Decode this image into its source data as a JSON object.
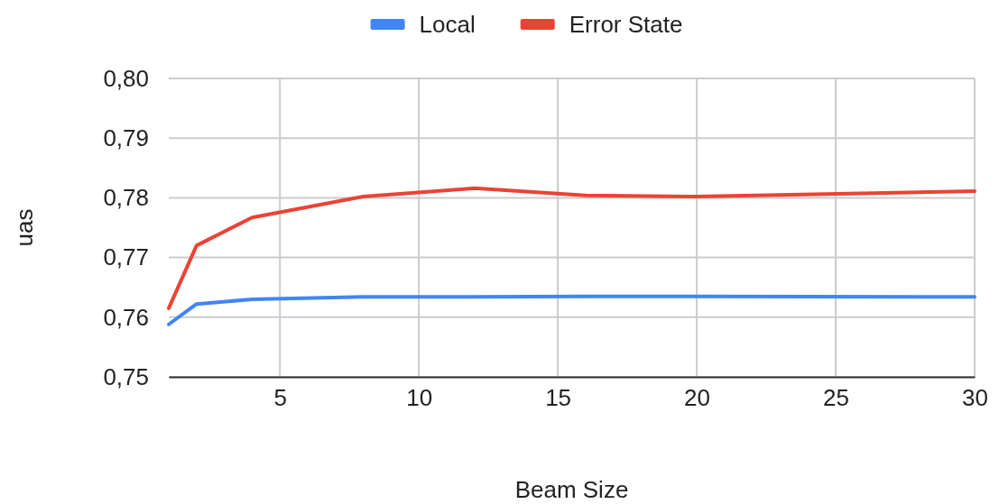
{
  "chart_data": {
    "type": "line",
    "xlabel": "Beam Size",
    "ylabel": "uas",
    "x": [
      1,
      2,
      4,
      8,
      12,
      16,
      20,
      30
    ],
    "series": [
      {
        "name": "Local",
        "color": "#4285f4",
        "values": [
          0.7588,
          0.7622,
          0.763,
          0.7634,
          0.7634,
          0.7635,
          0.7635,
          0.7634
        ]
      },
      {
        "name": "Error State",
        "color": "#ea4335",
        "values": [
          0.7615,
          0.772,
          0.7767,
          0.7802,
          0.7816,
          0.7804,
          0.7802,
          0.7811
        ]
      }
    ],
    "xlim": [
      1,
      30
    ],
    "xticks": [
      5,
      10,
      15,
      20,
      25,
      30
    ],
    "ylim": [
      0.75,
      0.8
    ],
    "yticks": [
      {
        "value": 0.75,
        "label": "0,75"
      },
      {
        "value": 0.76,
        "label": "0,76"
      },
      {
        "value": 0.77,
        "label": "0,77"
      },
      {
        "value": 0.78,
        "label": "0,78"
      },
      {
        "value": 0.79,
        "label": "0,79"
      },
      {
        "value": 0.8,
        "label": "0,80"
      }
    ],
    "grid": true,
    "legend": "top",
    "marker": "none",
    "line_style": "solid"
  }
}
